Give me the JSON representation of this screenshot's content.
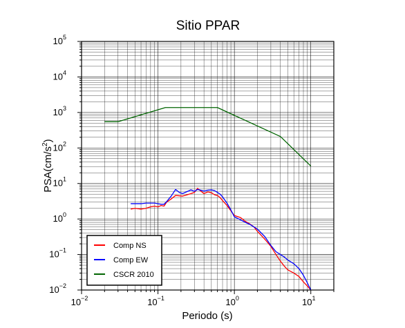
{
  "chart_data": {
    "type": "line",
    "title": "Sitio PPAR",
    "xlabel": "Periodo (s)",
    "ylabel_base": "PSA(cm/s",
    "ylabel_exp": "2",
    "ylabel_close": ")",
    "x_scale": "log",
    "y_scale": "log",
    "xlim": [
      0.01,
      20
    ],
    "ylim": [
      0.01,
      100000
    ],
    "grid": true,
    "legend_position": "bottom-left",
    "x_ticks": [
      {
        "value": 0.01,
        "base": "10",
        "exp": "−2"
      },
      {
        "value": 0.1,
        "base": "10",
        "exp": "−1"
      },
      {
        "value": 1,
        "base": "10",
        "exp": "0"
      },
      {
        "value": 10,
        "base": "10",
        "exp": "1"
      }
    ],
    "y_ticks": [
      {
        "value": 0.01,
        "base": "10",
        "exp": "−2"
      },
      {
        "value": 0.1,
        "base": "10",
        "exp": "−1"
      },
      {
        "value": 1,
        "base": "10",
        "exp": "0"
      },
      {
        "value": 10,
        "base": "10",
        "exp": "1"
      },
      {
        "value": 100,
        "base": "10",
        "exp": "2"
      },
      {
        "value": 1000,
        "base": "10",
        "exp": "3"
      },
      {
        "value": 10000,
        "base": "10",
        "exp": "4"
      },
      {
        "value": 100000,
        "base": "10",
        "exp": "5"
      }
    ],
    "series": [
      {
        "name": "Comp NS",
        "color": "#ff0000",
        "points": [
          [
            0.044,
            1.9
          ],
          [
            0.05,
            2.0
          ],
          [
            0.06,
            1.9
          ],
          [
            0.07,
            2.0
          ],
          [
            0.08,
            2.2
          ],
          [
            0.09,
            2.3
          ],
          [
            0.1,
            2.2
          ],
          [
            0.11,
            2.4
          ],
          [
            0.12,
            2.3
          ],
          [
            0.13,
            3.0
          ],
          [
            0.15,
            3.7
          ],
          [
            0.17,
            4.6
          ],
          [
            0.19,
            4.5
          ],
          [
            0.21,
            4.4
          ],
          [
            0.24,
            4.8
          ],
          [
            0.27,
            5.2
          ],
          [
            0.3,
            5.6
          ],
          [
            0.33,
            7.3
          ],
          [
            0.36,
            6.2
          ],
          [
            0.4,
            5.2
          ],
          [
            0.45,
            5.8
          ],
          [
            0.5,
            5.5
          ],
          [
            0.55,
            4.8
          ],
          [
            0.6,
            4.6
          ],
          [
            0.65,
            4.0
          ],
          [
            0.7,
            3.3
          ],
          [
            0.8,
            2.4
          ],
          [
            0.9,
            1.7
          ],
          [
            1.0,
            1.25
          ],
          [
            1.2,
            1.1
          ],
          [
            1.4,
            0.85
          ],
          [
            1.6,
            0.72
          ],
          [
            1.8,
            0.6
          ],
          [
            2.0,
            0.45
          ],
          [
            2.5,
            0.27
          ],
          [
            3.0,
            0.17
          ],
          [
            3.5,
            0.1
          ],
          [
            4.0,
            0.065
          ],
          [
            4.5,
            0.047
          ],
          [
            5.0,
            0.037
          ],
          [
            6.0,
            0.03
          ],
          [
            7.0,
            0.024
          ],
          [
            8.0,
            0.017
          ],
          [
            9.0,
            0.013
          ],
          [
            10.0,
            0.01
          ]
        ]
      },
      {
        "name": "Comp EW",
        "color": "#0000ff",
        "points": [
          [
            0.044,
            2.7
          ],
          [
            0.05,
            2.7
          ],
          [
            0.06,
            2.7
          ],
          [
            0.07,
            2.8
          ],
          [
            0.08,
            2.8
          ],
          [
            0.09,
            2.8
          ],
          [
            0.1,
            2.7
          ],
          [
            0.11,
            2.6
          ],
          [
            0.12,
            2.6
          ],
          [
            0.13,
            3.1
          ],
          [
            0.15,
            4.5
          ],
          [
            0.17,
            6.8
          ],
          [
            0.19,
            5.6
          ],
          [
            0.21,
            5.2
          ],
          [
            0.24,
            5.9
          ],
          [
            0.27,
            6.6
          ],
          [
            0.3,
            6.0
          ],
          [
            0.33,
            6.8
          ],
          [
            0.36,
            6.5
          ],
          [
            0.4,
            6.1
          ],
          [
            0.45,
            6.5
          ],
          [
            0.5,
            6.6
          ],
          [
            0.55,
            6.3
          ],
          [
            0.6,
            5.6
          ],
          [
            0.65,
            5.0
          ],
          [
            0.7,
            4.2
          ],
          [
            0.8,
            2.8
          ],
          [
            0.9,
            1.8
          ],
          [
            1.0,
            1.15
          ],
          [
            1.2,
            0.95
          ],
          [
            1.4,
            0.8
          ],
          [
            1.6,
            0.7
          ],
          [
            1.8,
            0.6
          ],
          [
            2.0,
            0.52
          ],
          [
            2.5,
            0.32
          ],
          [
            3.0,
            0.18
          ],
          [
            3.5,
            0.12
          ],
          [
            4.0,
            0.1
          ],
          [
            4.5,
            0.085
          ],
          [
            5.0,
            0.07
          ],
          [
            6.0,
            0.055
          ],
          [
            7.0,
            0.04
          ],
          [
            8.0,
            0.026
          ],
          [
            9.0,
            0.016
          ],
          [
            10.0,
            0.01
          ]
        ]
      },
      {
        "name": "CSCR 2010",
        "color": "#006400",
        "points": [
          [
            0.02,
            550
          ],
          [
            0.03,
            550
          ],
          [
            0.125,
            1375
          ],
          [
            0.6,
            1375
          ],
          [
            4.0,
            210
          ],
          [
            10.0,
            31
          ]
        ]
      }
    ]
  }
}
